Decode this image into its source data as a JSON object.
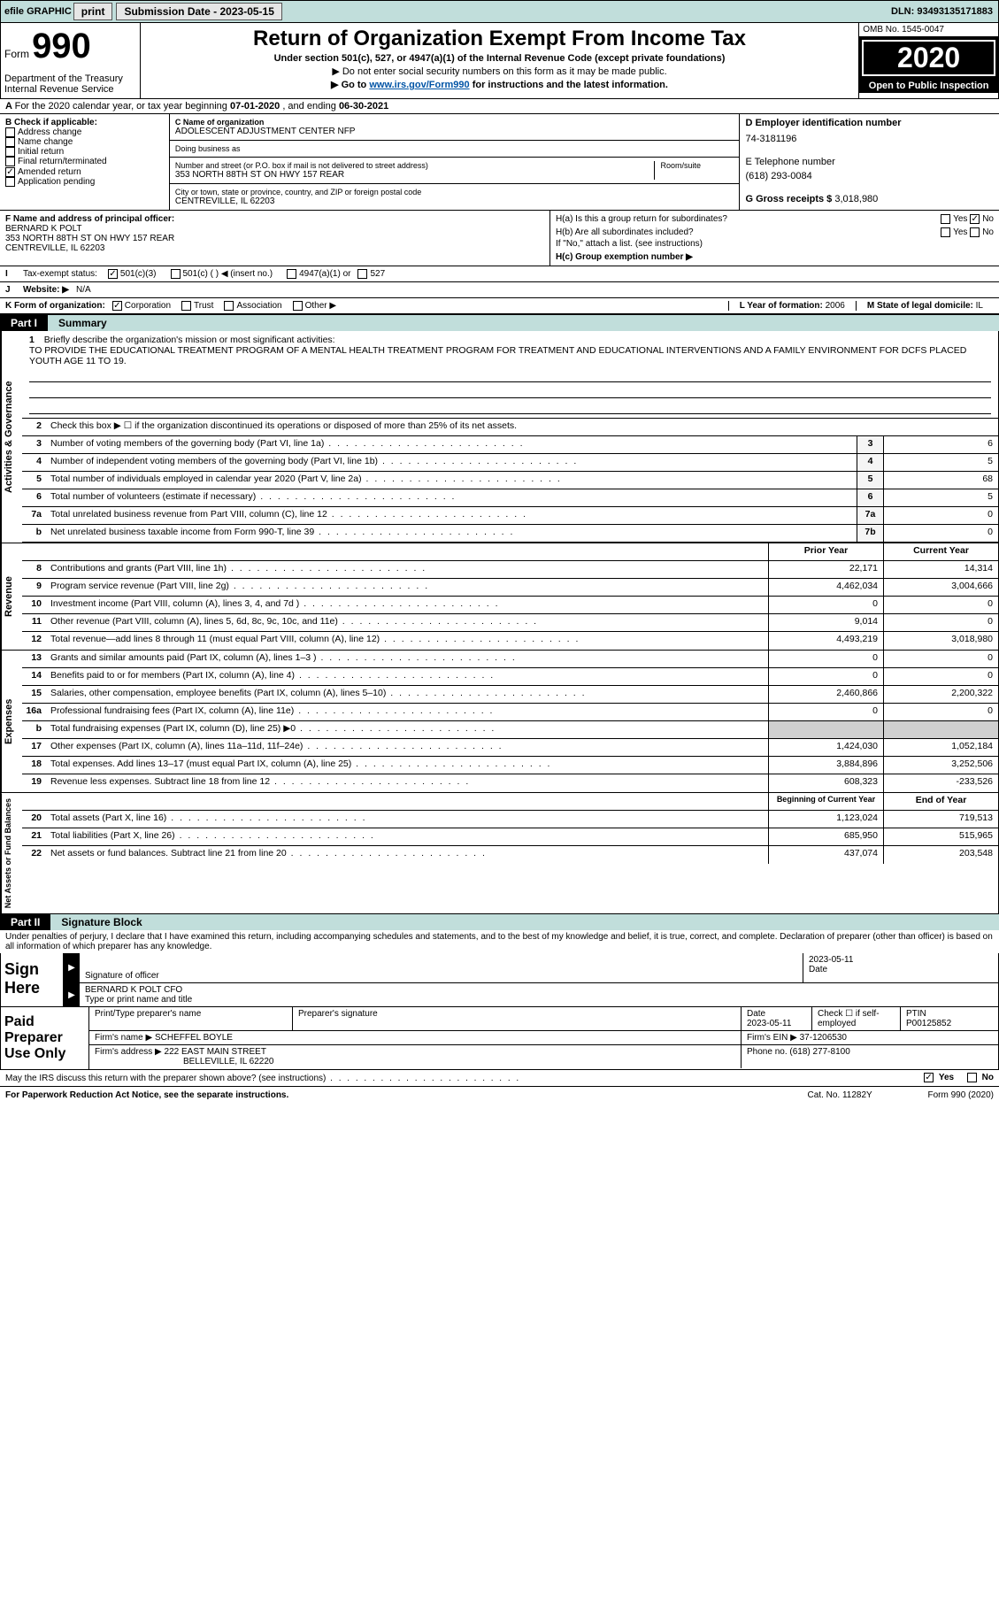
{
  "topbar": {
    "efile_label": "efile GRAPHIC",
    "print_btn": "print",
    "sub_date_label": "Submission Date - ",
    "sub_date": "2023-05-15",
    "dln_label": "DLN: ",
    "dln": "93493135171883"
  },
  "header": {
    "form_word": "Form",
    "form_num": "990",
    "dept": "Department of the Treasury\nInternal Revenue Service",
    "title": "Return of Organization Exempt From Income Tax",
    "sub": "Under section 501(c), 527, or 4947(a)(1) of the Internal Revenue Code (except private foundations)",
    "note1": "▶ Do not enter social security numbers on this form as it may be made public.",
    "note2_pre": "▶ Go to ",
    "note2_link": "www.irs.gov/Form990",
    "note2_post": " for instructions and the latest information.",
    "omb": "OMB No. 1545-0047",
    "year": "2020",
    "open": "Open to Public Inspection"
  },
  "period": {
    "text_pre": "For the 2020 calendar year, or tax year beginning ",
    "begin": "07-01-2020",
    "mid": " , and ending ",
    "end": "06-30-2021"
  },
  "colB": {
    "header": "B Check if applicable:",
    "items": [
      "Address change",
      "Name change",
      "Initial return",
      "Final return/terminated",
      "Amended return",
      "Application pending"
    ],
    "checked_index": 4
  },
  "colC": {
    "name_label": "C Name of organization",
    "name": "ADOLESCENT ADJUSTMENT CENTER NFP",
    "dba_label": "Doing business as",
    "dba": "",
    "street_label": "Number and street (or P.O. box if mail is not delivered to street address)",
    "room_label": "Room/suite",
    "street": "353 NORTH 88TH ST ON HWY 157 REAR",
    "city_label": "City or town, state or province, country, and ZIP or foreign postal code",
    "city": "CENTREVILLE, IL  62203"
  },
  "colD": {
    "ein_label": "D Employer identification number",
    "ein": "74-3181196",
    "phone_label": "E Telephone number",
    "phone": "(618) 293-0084",
    "gross_label": "G Gross receipts $ ",
    "gross": "3,018,980"
  },
  "officer": {
    "label": "F  Name and address of principal officer:",
    "name": "BERNARD K POLT",
    "addr1": "353 NORTH 88TH ST ON HWY 157 REAR",
    "addr2": "CENTREVILLE, IL  62203"
  },
  "H": {
    "a_label": "H(a)  Is this a group return for subordinates?",
    "a_yes": "Yes",
    "a_no": "No",
    "b_label": "H(b)  Are all subordinates included?",
    "b_yes": "Yes",
    "b_no": "No",
    "b_note": "If \"No,\" attach a list. (see instructions)",
    "c_label": "H(c)  Group exemption number ▶"
  },
  "I": {
    "label": "Tax-exempt status:",
    "opt1": "501(c)(3)",
    "opt2": "501(c) (   ) ◀ (insert no.)",
    "opt3": "4947(a)(1) or",
    "opt4": "527"
  },
  "J": {
    "label": "Website: ▶",
    "value": "N/A"
  },
  "K": {
    "label": "K Form of organization:",
    "opts": [
      "Corporation",
      "Trust",
      "Association",
      "Other ▶"
    ],
    "L_label": "L Year of formation: ",
    "L_val": "2006",
    "M_label": "M State of legal domicile: ",
    "M_val": "IL"
  },
  "partI": {
    "label": "Part I",
    "title": "Summary"
  },
  "mission": {
    "prompt": "Briefly describe the organization's mission or most significant activities:",
    "text": "TO PROVIDE THE EDUCATIONAL TREATMENT PROGRAM OF A MENTAL HEALTH TREATMENT PROGRAM FOR TREATMENT AND EDUCATIONAL INTERVENTIONS AND A FAMILY ENVIRONMENT FOR DCFS PLACED YOUTH AGE 11 TO 19."
  },
  "line2": "Check this box ▶ ☐  if the organization discontinued its operations or disposed of more than 25% of its net assets.",
  "side_labels": {
    "gov": "Activities & Governance",
    "rev": "Revenue",
    "exp": "Expenses",
    "net": "Net Assets or Fund Balances"
  },
  "gov_lines": [
    {
      "n": "3",
      "d": "Number of voting members of the governing body (Part VI, line 1a)",
      "box": "3",
      "v": "6"
    },
    {
      "n": "4",
      "d": "Number of independent voting members of the governing body (Part VI, line 1b)",
      "box": "4",
      "v": "5"
    },
    {
      "n": "5",
      "d": "Total number of individuals employed in calendar year 2020 (Part V, line 2a)",
      "box": "5",
      "v": "68"
    },
    {
      "n": "6",
      "d": "Total number of volunteers (estimate if necessary)",
      "box": "6",
      "v": "5"
    },
    {
      "n": "7a",
      "d": "Total unrelated business revenue from Part VIII, column (C), line 12",
      "box": "7a",
      "v": "0"
    },
    {
      "n": "b",
      "d": "Net unrelated business taxable income from Form 990-T, line 39",
      "box": "7b",
      "v": "0"
    }
  ],
  "two_col_header": {
    "prior": "Prior Year",
    "current": "Current Year"
  },
  "rev_lines": [
    {
      "n": "8",
      "d": "Contributions and grants (Part VIII, line 1h)",
      "p": "22,171",
      "c": "14,314"
    },
    {
      "n": "9",
      "d": "Program service revenue (Part VIII, line 2g)",
      "p": "4,462,034",
      "c": "3,004,666"
    },
    {
      "n": "10",
      "d": "Investment income (Part VIII, column (A), lines 3, 4, and 7d )",
      "p": "0",
      "c": "0"
    },
    {
      "n": "11",
      "d": "Other revenue (Part VIII, column (A), lines 5, 6d, 8c, 9c, 10c, and 11e)",
      "p": "9,014",
      "c": "0"
    },
    {
      "n": "12",
      "d": "Total revenue—add lines 8 through 11 (must equal Part VIII, column (A), line 12)",
      "p": "4,493,219",
      "c": "3,018,980"
    }
  ],
  "exp_lines": [
    {
      "n": "13",
      "d": "Grants and similar amounts paid (Part IX, column (A), lines 1–3 )",
      "p": "0",
      "c": "0"
    },
    {
      "n": "14",
      "d": "Benefits paid to or for members (Part IX, column (A), line 4)",
      "p": "0",
      "c": "0"
    },
    {
      "n": "15",
      "d": "Salaries, other compensation, employee benefits (Part IX, column (A), lines 5–10)",
      "p": "2,460,866",
      "c": "2,200,322"
    },
    {
      "n": "16a",
      "d": "Professional fundraising fees (Part IX, column (A), line 11e)",
      "p": "0",
      "c": "0"
    },
    {
      "n": "b",
      "d": "Total fundraising expenses (Part IX, column (D), line 25) ▶0",
      "p": "shaded",
      "c": "shaded"
    },
    {
      "n": "17",
      "d": "Other expenses (Part IX, column (A), lines 11a–11d, 11f–24e)",
      "p": "1,424,030",
      "c": "1,052,184"
    },
    {
      "n": "18",
      "d": "Total expenses. Add lines 13–17 (must equal Part IX, column (A), line 25)",
      "p": "3,884,896",
      "c": "3,252,506"
    },
    {
      "n": "19",
      "d": "Revenue less expenses. Subtract line 18 from line 12",
      "p": "608,323",
      "c": "-233,526"
    }
  ],
  "net_header": {
    "begin": "Beginning of Current Year",
    "end": "End of Year"
  },
  "net_lines": [
    {
      "n": "20",
      "d": "Total assets (Part X, line 16)",
      "p": "1,123,024",
      "c": "719,513"
    },
    {
      "n": "21",
      "d": "Total liabilities (Part X, line 26)",
      "p": "685,950",
      "c": "515,965"
    },
    {
      "n": "22",
      "d": "Net assets or fund balances. Subtract line 21 from line 20",
      "p": "437,074",
      "c": "203,548"
    }
  ],
  "partII": {
    "label": "Part II",
    "title": "Signature Block"
  },
  "penalties": "Under penalties of perjury, I declare that I have examined this return, including accompanying schedules and statements, and to the best of my knowledge and belief, it is true, correct, and complete. Declaration of preparer (other than officer) is based on all information of which preparer has any knowledge.",
  "sign": {
    "label": "Sign Here",
    "sig_officer": "Signature of officer",
    "date_label": "Date",
    "date": "2023-05-11",
    "name_title": "BERNARD K POLT CFO",
    "type_label": "Type or print name and title"
  },
  "prep": {
    "label": "Paid Preparer Use Only",
    "h1": "Print/Type preparer's name",
    "h2": "Preparer's signature",
    "h3_label": "Date",
    "h3": "2023-05-11",
    "h4": "Check ☐ if self-employed",
    "h5_label": "PTIN",
    "h5": "P00125852",
    "firm_label": "Firm's name    ▶ ",
    "firm": "SCHEFFEL BOYLE",
    "ein_label": "Firm's EIN ▶ ",
    "ein": "37-1206530",
    "addr_label": "Firm's address ▶ ",
    "addr1": "222 EAST MAIN STREET",
    "addr2": "BELLEVILLE, IL  62220",
    "phone_label": "Phone no. ",
    "phone": "(618) 277-8100"
  },
  "discuss": {
    "text": "May the IRS discuss this return with the preparer shown above? (see instructions)",
    "yes": "Yes",
    "no": "No"
  },
  "footer": {
    "left": "For Paperwork Reduction Act Notice, see the separate instructions.",
    "mid": "Cat. No. 11282Y",
    "right": "Form 990 (2020)"
  }
}
